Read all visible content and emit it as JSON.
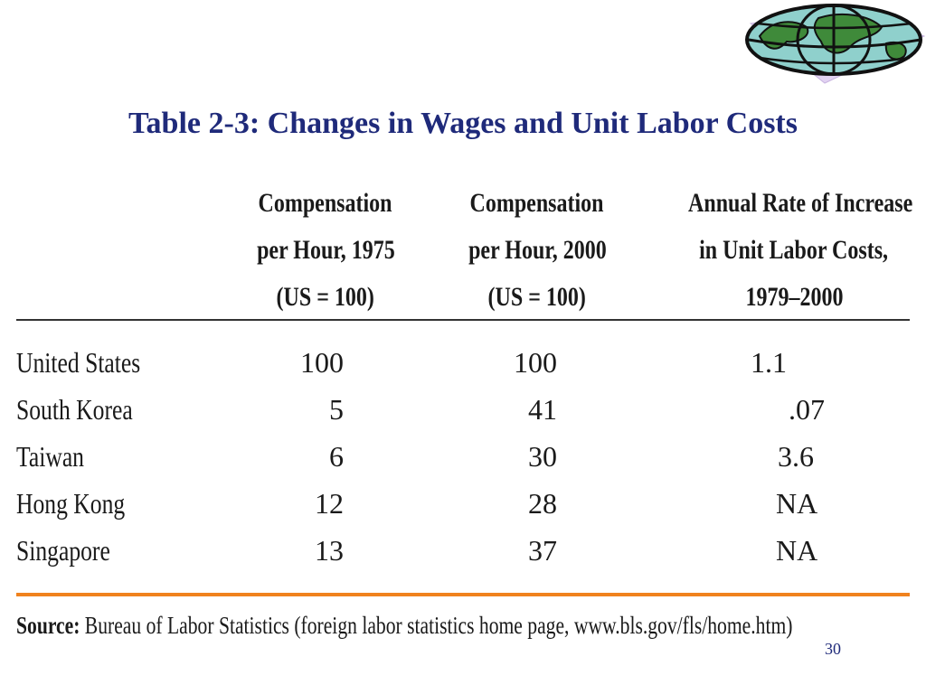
{
  "slide": {
    "title": "Table 2-3: Changes in Wages and Unit Labor Costs",
    "page_number": "30"
  },
  "logo": {
    "icon": "globe-icon",
    "backdrop_color": "#e2d2f2",
    "globe_color": "#8fd0cc",
    "land_color": "#3f8a3a"
  },
  "table": {
    "columns": [
      {
        "lines": [
          "Compensation",
          "per Hour, 1975",
          "(US = 100)"
        ]
      },
      {
        "lines": [
          "Compensation",
          "per Hour, 2000",
          "(US = 100)"
        ]
      },
      {
        "lines": [
          "Annual Rate of Increase",
          "in Unit Labor Costs,",
          "1979–2000"
        ]
      }
    ],
    "rows": [
      {
        "country": "United States",
        "comp1975": "100",
        "comp2000": "100",
        "ulc": "1.1"
      },
      {
        "country": "South Korea",
        "comp1975": "5",
        "comp2000": "41",
        "ulc": ".07"
      },
      {
        "country": "Taiwan",
        "comp1975": "6",
        "comp2000": "30",
        "ulc": "3.6"
      },
      {
        "country": "Hong Kong",
        "comp1975": "12",
        "comp2000": "28",
        "ulc": "NA"
      },
      {
        "country": "Singapore",
        "comp1975": "13",
        "comp2000": "37",
        "ulc": "NA"
      }
    ],
    "source_label": "Source:",
    "source_text": "Bureau of Labor Statistics (foreign labor statistics home page, www.bls.gov/fls/home.htm)",
    "accent_color": "#f0821e"
  }
}
